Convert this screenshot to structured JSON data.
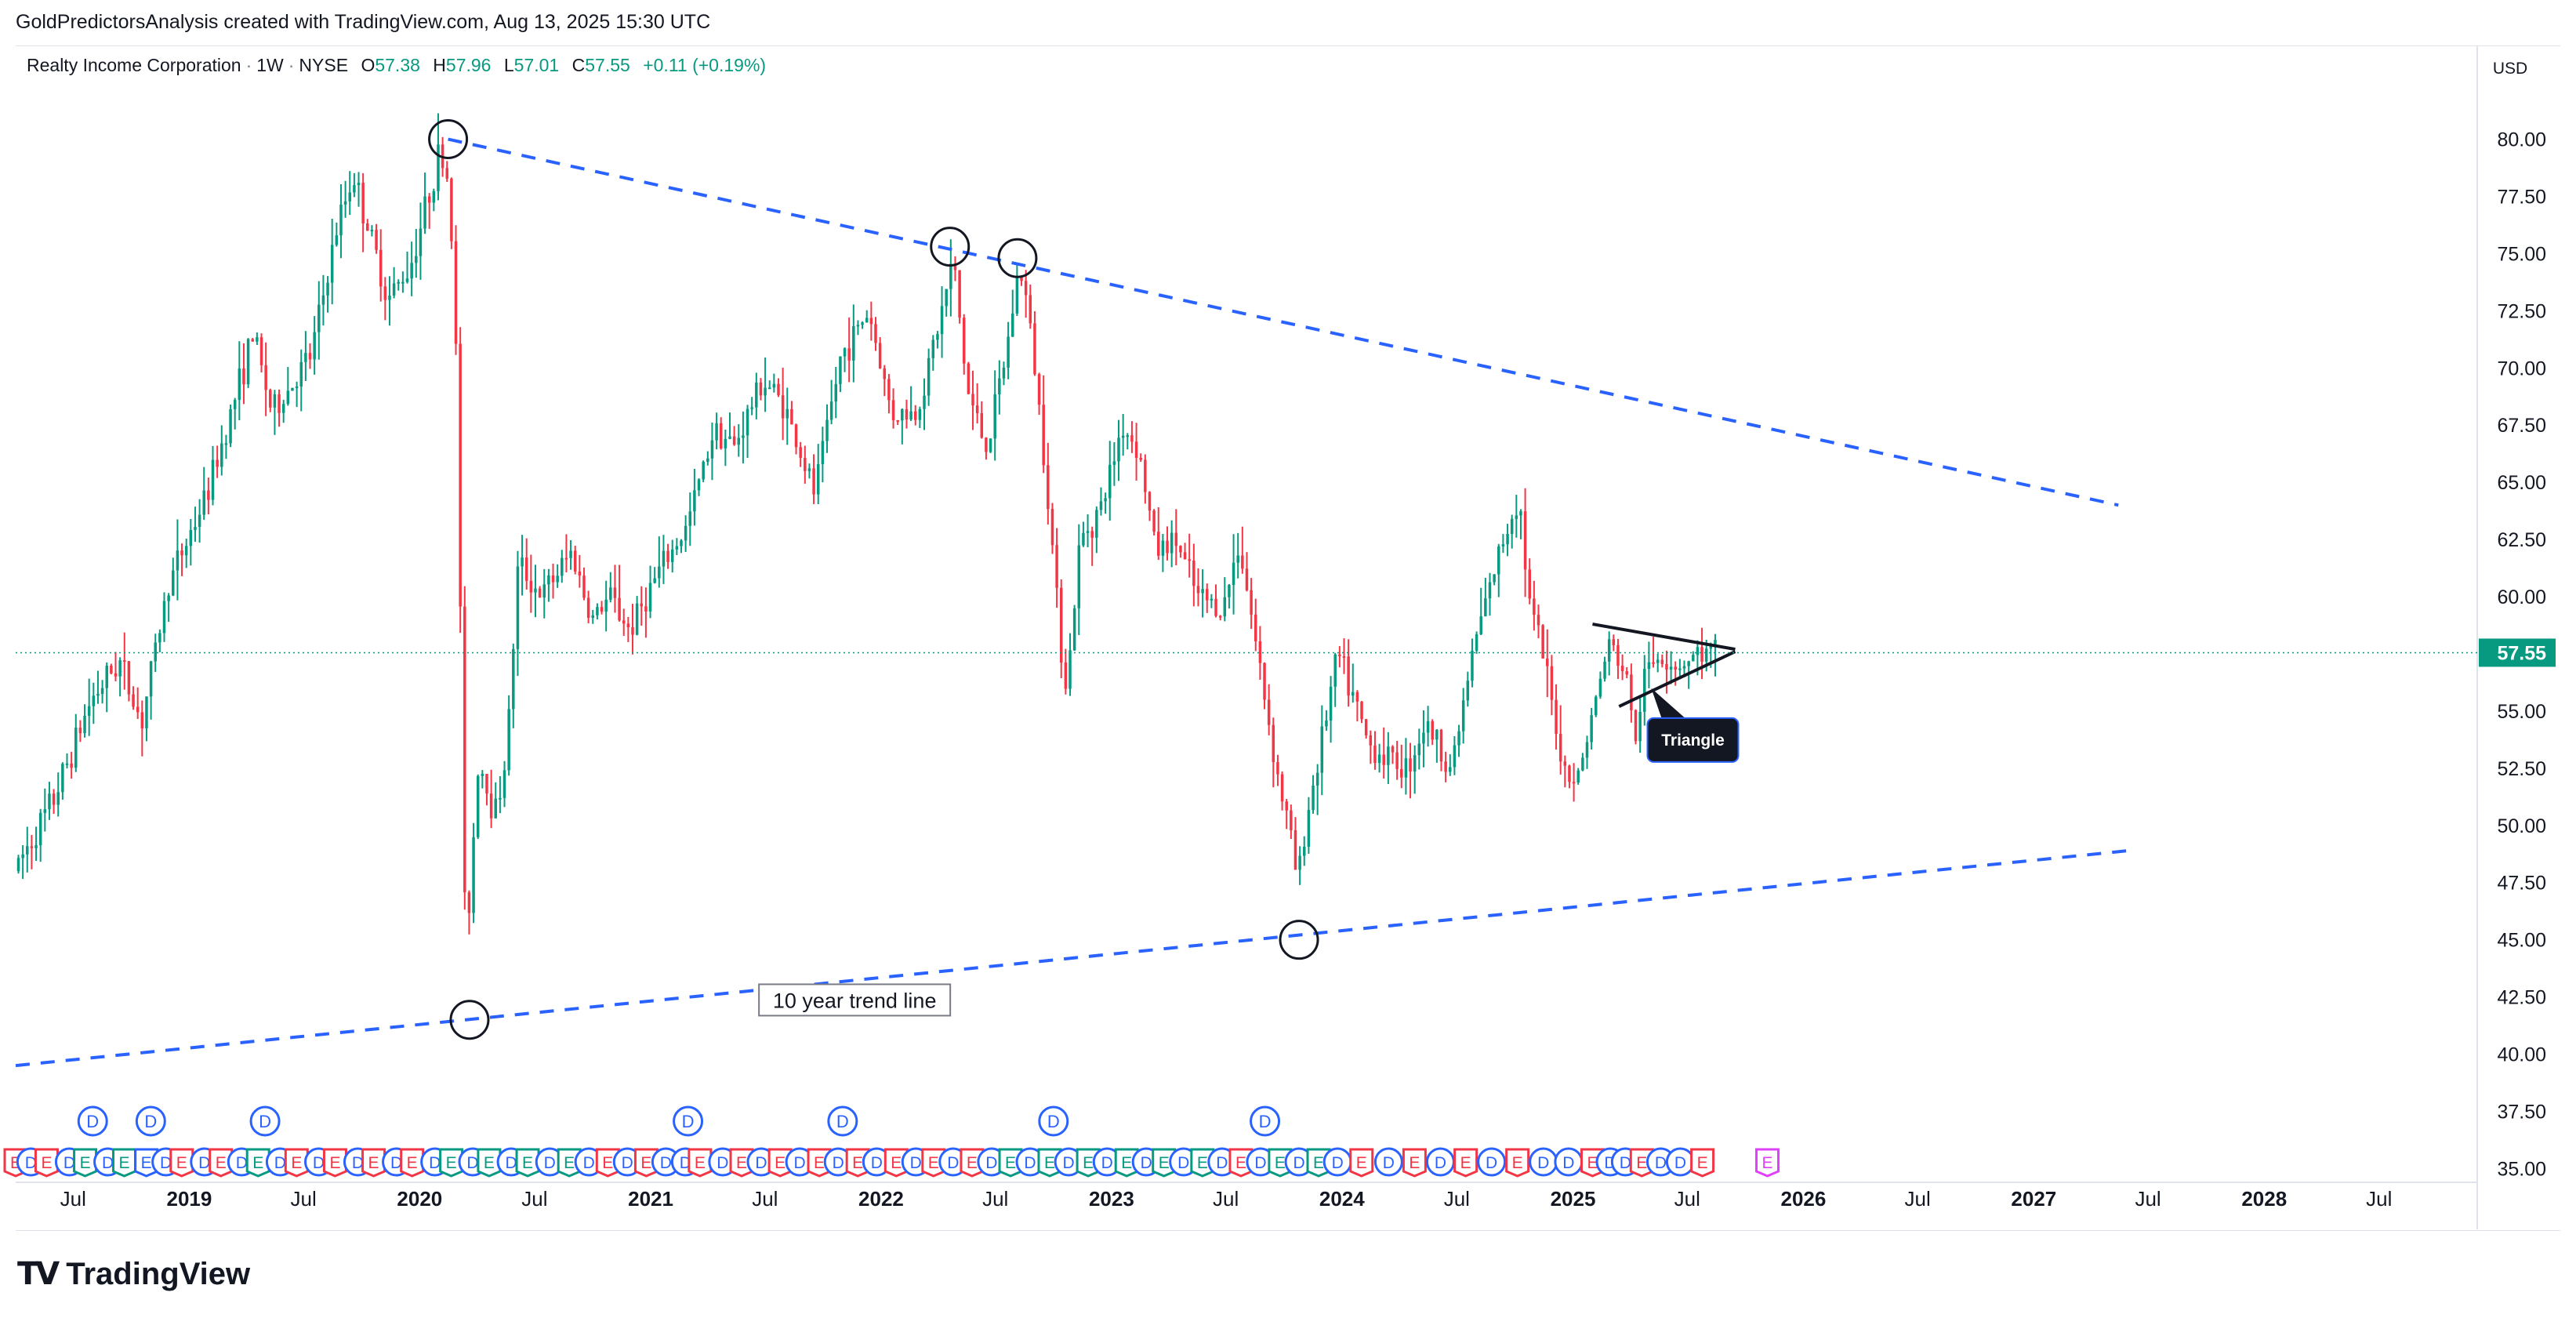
{
  "header": {
    "credit": "GoldPredictorsAnalysis created with TradingView.com, Aug 13, 2025 15:30 UTC"
  },
  "symbol": {
    "name": "Realty Income Corporation",
    "interval": "1W",
    "exchange": "NYSE",
    "open_label": "O",
    "open": "57.38",
    "high_label": "H",
    "high": "57.96",
    "low_label": "L",
    "low": "57.01",
    "close_label": "C",
    "close": "57.55",
    "change": "+0.11 (+0.19%)"
  },
  "currency": "USD",
  "last_price_label": "57.55",
  "footer": {
    "logo_text": "TradingView"
  },
  "colors": {
    "up": "#089981",
    "down": "#f23645",
    "trend": "#2962ff",
    "last_price": "#089981",
    "dividend": "#2962ff",
    "earnings_up": "#089981",
    "earnings_down": "#f23645",
    "earnings_future": "#e040fb"
  },
  "chart_data": {
    "type": "candlestick",
    "interval": "1W",
    "yaxis": {
      "range": [
        34.5,
        83
      ],
      "ticks": [
        35.0,
        37.5,
        40.0,
        42.5,
        45.0,
        47.5,
        50.0,
        52.5,
        55.0,
        57.5,
        60.0,
        62.5,
        65.0,
        67.5,
        70.0,
        72.5,
        75.0,
        77.5,
        80.0
      ],
      "tick_labels": [
        "35.00",
        "37.50",
        "40.00",
        "42.50",
        "45.00",
        "47.50",
        "50.00",
        "52.50",
        "55.00",
        "57.50",
        "60.00",
        "62.50",
        "65.00",
        "67.50",
        "70.00",
        "72.50",
        "75.00",
        "77.50",
        "80.00"
      ]
    },
    "xaxis": {
      "range": [
        "2018-04-01",
        "2028-12-01"
      ],
      "ticks": [
        "2018-07-01",
        "2019-01-01",
        "2019-07-01",
        "2020-01-01",
        "2020-07-01",
        "2021-01-01",
        "2021-07-01",
        "2022-01-01",
        "2022-07-01",
        "2023-01-01",
        "2023-07-01",
        "2024-01-01",
        "2024-07-01",
        "2025-01-01",
        "2025-07-01",
        "2026-01-01",
        "2026-07-01",
        "2027-01-01",
        "2027-07-01",
        "2028-01-01",
        "2028-07-01"
      ],
      "tick_labels": [
        "Jul",
        "2019",
        "Jul",
        "2020",
        "Jul",
        "2021",
        "Jul",
        "2022",
        "Jul",
        "2023",
        "Jul",
        "2024",
        "Jul",
        "2025",
        "Jul",
        "2026",
        "Jul",
        "2027",
        "Jul",
        "2028",
        "Jul"
      ]
    },
    "last_price": 57.55,
    "price_path": [
      [
        "2018-04-01",
        48.0
      ],
      [
        "2018-06-01",
        51.0
      ],
      [
        "2018-08-01",
        55.5
      ],
      [
        "2018-09-15",
        57.2
      ],
      [
        "2018-10-20",
        54.5
      ],
      [
        "2018-12-01",
        60.5
      ],
      [
        "2019-02-01",
        64.5
      ],
      [
        "2019-03-15",
        68.5
      ],
      [
        "2019-04-15",
        71.5
      ],
      [
        "2019-05-15",
        68.0
      ],
      [
        "2019-07-15",
        70.5
      ],
      [
        "2019-08-25",
        76.0
      ],
      [
        "2019-09-20",
        78.5
      ],
      [
        "2019-10-15",
        76.0
      ],
      [
        "2019-11-15",
        73.0
      ],
      [
        "2019-12-20",
        74.5
      ],
      [
        "2020-02-05",
        79.5
      ],
      [
        "2020-02-20",
        78.0
      ],
      [
        "2020-03-02",
        70.0
      ],
      [
        "2020-03-09",
        58.0
      ],
      [
        "2020-03-16",
        44.5
      ],
      [
        "2020-03-23",
        47.0
      ],
      [
        "2020-04-06",
        53.0
      ],
      [
        "2020-05-01",
        50.5
      ],
      [
        "2020-05-20",
        53.0
      ],
      [
        "2020-06-08",
        61.5
      ],
      [
        "2020-07-15",
        60.0
      ],
      [
        "2020-09-01",
        62.0
      ],
      [
        "2020-10-01",
        59.0
      ],
      [
        "2020-11-01",
        60.0
      ],
      [
        "2020-12-01",
        58.5
      ],
      [
        "2021-01-15",
        61.0
      ],
      [
        "2021-03-01",
        63.0
      ],
      [
        "2021-04-15",
        67.5
      ],
      [
        "2021-05-15",
        66.5
      ],
      [
        "2021-06-30",
        69.5
      ],
      [
        "2021-08-01",
        68.5
      ],
      [
        "2021-09-20",
        64.5
      ],
      [
        "2021-11-01",
        70.5
      ],
      [
        "2021-12-15",
        72.5
      ],
      [
        "2022-01-20",
        68.0
      ],
      [
        "2022-03-01",
        68.0
      ],
      [
        "2022-04-10",
        72.5
      ],
      [
        "2022-04-28",
        74.8
      ],
      [
        "2022-05-20",
        69.0
      ],
      [
        "2022-06-20",
        66.5
      ],
      [
        "2022-07-20",
        70.5
      ],
      [
        "2022-08-10",
        74.5
      ],
      [
        "2022-08-25",
        72.5
      ],
      [
        "2022-09-20",
        66.0
      ],
      [
        "2022-10-15",
        58.0
      ],
      [
        "2022-10-25",
        56.0
      ],
      [
        "2022-11-15",
        62.5
      ],
      [
        "2022-12-20",
        64.0
      ],
      [
        "2023-01-20",
        67.5
      ],
      [
        "2023-02-15",
        66.5
      ],
      [
        "2023-03-15",
        62.0
      ],
      [
        "2023-04-15",
        62.5
      ],
      [
        "2023-05-20",
        60.0
      ],
      [
        "2023-06-30",
        59.5
      ],
      [
        "2023-07-25",
        62.5
      ],
      [
        "2023-08-20",
        58.0
      ],
      [
        "2023-09-25",
        52.0
      ],
      [
        "2023-10-15",
        49.5
      ],
      [
        "2023-10-25",
        47.5
      ],
      [
        "2023-11-10",
        50.5
      ],
      [
        "2023-12-01",
        53.5
      ],
      [
        "2023-12-28",
        57.5
      ],
      [
        "2024-02-15",
        53.5
      ],
      [
        "2024-04-15",
        52.5
      ],
      [
        "2024-05-15",
        54.5
      ],
      [
        "2024-06-25",
        52.5
      ],
      [
        "2024-08-01",
        58.0
      ],
      [
        "2024-09-15",
        62.5
      ],
      [
        "2024-10-10",
        64.5
      ],
      [
        "2024-10-25",
        60.0
      ],
      [
        "2024-11-20",
        57.0
      ],
      [
        "2024-12-20",
        52.5
      ],
      [
        "2025-01-10",
        52.0
      ],
      [
        "2025-02-05",
        55.0
      ],
      [
        "2025-03-01",
        58.0
      ],
      [
        "2025-03-20",
        57.0
      ],
      [
        "2025-04-05",
        56.0
      ],
      [
        "2025-04-10",
        52.5
      ],
      [
        "2025-04-25",
        56.5
      ],
      [
        "2025-05-20",
        57.5
      ],
      [
        "2025-06-20",
        57.0
      ],
      [
        "2025-07-20",
        57.5
      ],
      [
        "2025-08-13",
        57.55
      ]
    ],
    "trend_lines": [
      {
        "name": "upper-resistance",
        "style": "dashed",
        "from": [
          "2020-02-15",
          80.0
        ],
        "to": [
          "2027-05-15",
          64.0
        ]
      },
      {
        "name": "lower-support",
        "style": "dashed",
        "from": [
          "2018-04-01",
          39.5
        ],
        "to": [
          "2027-06-01",
          48.9
        ]
      },
      {
        "name": "triangle-upper",
        "style": "solid",
        "from": [
          "2025-02-01",
          58.8
        ],
        "to": [
          "2025-09-15",
          57.7
        ]
      },
      {
        "name": "triangle-lower",
        "style": "solid",
        "from": [
          "2025-03-15",
          55.2
        ],
        "to": [
          "2025-09-15",
          57.6
        ]
      }
    ],
    "pivot_circles": [
      {
        "name": "2020-top",
        "x": "2020-02-15",
        "y": 80.0
      },
      {
        "name": "2022-april-high",
        "x": "2022-04-20",
        "y": 75.3
      },
      {
        "name": "2022-august-high",
        "x": "2022-08-05",
        "y": 74.8
      },
      {
        "name": "2020-covid-low",
        "x": "2020-03-20",
        "y": 41.5
      },
      {
        "name": "2023-october-low",
        "x": "2023-10-25",
        "y": 45.0
      }
    ],
    "annotations": [
      {
        "name": "trend-line-label",
        "text": "10 year trend line",
        "x": "2021-11-20",
        "y": 42.3,
        "boxed": true
      },
      {
        "name": "triangle-callout",
        "text": "Triangle",
        "x": "2025-07-10",
        "y": 53.8,
        "points_to": [
          "2025-05-05",
          56.0
        ]
      }
    ],
    "dividend_markers": [
      "2018-08-01",
      "2018-11-01",
      "2019-05-01",
      "2021-03-01",
      "2021-11-01",
      "2022-10-01",
      "2023-09-01"
    ],
    "event_markers": [
      {
        "d": "2018-04-01",
        "t": "E",
        "c": "down"
      },
      {
        "d": "2018-04-25",
        "t": "D",
        "c": "div"
      },
      {
        "d": "2018-05-20",
        "t": "E",
        "c": "down"
      },
      {
        "d": "2018-06-25",
        "t": "D",
        "c": "div"
      },
      {
        "d": "2018-07-20",
        "t": "E",
        "c": "up"
      },
      {
        "d": "2018-08-25",
        "t": "D",
        "c": "div"
      },
      {
        "d": "2018-09-20",
        "t": "E",
        "c": "up"
      },
      {
        "d": "2018-10-25",
        "t": "E",
        "c": "div"
      },
      {
        "d": "2018-11-25",
        "t": "D",
        "c": "div"
      },
      {
        "d": "2018-12-20",
        "t": "E",
        "c": "down"
      },
      {
        "d": "2019-01-25",
        "t": "D",
        "c": "div"
      },
      {
        "d": "2019-02-20",
        "t": "E",
        "c": "down"
      },
      {
        "d": "2019-03-25",
        "t": "D",
        "c": "div"
      },
      {
        "d": "2019-04-20",
        "t": "E",
        "c": "up"
      },
      {
        "d": "2019-05-25",
        "t": "D",
        "c": "div"
      },
      {
        "d": "2019-06-20",
        "t": "E",
        "c": "down"
      },
      {
        "d": "2019-07-25",
        "t": "D",
        "c": "div"
      },
      {
        "d": "2019-08-20",
        "t": "E",
        "c": "down"
      },
      {
        "d": "2019-09-25",
        "t": "D",
        "c": "div"
      },
      {
        "d": "2019-10-20",
        "t": "E",
        "c": "down"
      },
      {
        "d": "2019-11-25",
        "t": "D",
        "c": "div"
      },
      {
        "d": "2019-12-20",
        "t": "E",
        "c": "down"
      },
      {
        "d": "2020-01-25",
        "t": "D",
        "c": "div"
      },
      {
        "d": "2020-02-20",
        "t": "E",
        "c": "up"
      },
      {
        "d": "2020-03-25",
        "t": "D",
        "c": "div"
      },
      {
        "d": "2020-04-20",
        "t": "E",
        "c": "up"
      },
      {
        "d": "2020-05-25",
        "t": "D",
        "c": "div"
      },
      {
        "d": "2020-06-20",
        "t": "E",
        "c": "up"
      },
      {
        "d": "2020-07-25",
        "t": "D",
        "c": "div"
      },
      {
        "d": "2020-08-25",
        "t": "E",
        "c": "up"
      },
      {
        "d": "2020-09-25",
        "t": "D",
        "c": "div"
      },
      {
        "d": "2020-10-25",
        "t": "E",
        "c": "down"
      },
      {
        "d": "2020-11-25",
        "t": "D",
        "c": "div"
      },
      {
        "d": "2020-12-25",
        "t": "E",
        "c": "down"
      },
      {
        "d": "2021-01-25",
        "t": "D",
        "c": "div"
      },
      {
        "d": "2021-02-25",
        "t": "D",
        "c": "div"
      },
      {
        "d": "2021-03-20",
        "t": "E",
        "c": "down"
      },
      {
        "d": "2021-04-25",
        "t": "D",
        "c": "div"
      },
      {
        "d": "2021-05-25",
        "t": "E",
        "c": "down"
      },
      {
        "d": "2021-06-25",
        "t": "D",
        "c": "div"
      },
      {
        "d": "2021-07-25",
        "t": "E",
        "c": "down"
      },
      {
        "d": "2021-08-25",
        "t": "D",
        "c": "div"
      },
      {
        "d": "2021-09-25",
        "t": "E",
        "c": "down"
      },
      {
        "d": "2021-10-25",
        "t": "D",
        "c": "div"
      },
      {
        "d": "2021-11-25",
        "t": "E",
        "c": "down"
      },
      {
        "d": "2021-12-25",
        "t": "D",
        "c": "div"
      },
      {
        "d": "2022-01-25",
        "t": "E",
        "c": "down"
      },
      {
        "d": "2022-02-25",
        "t": "D",
        "c": "div"
      },
      {
        "d": "2022-03-25",
        "t": "E",
        "c": "down"
      },
      {
        "d": "2022-04-25",
        "t": "D",
        "c": "div"
      },
      {
        "d": "2022-05-25",
        "t": "E",
        "c": "down"
      },
      {
        "d": "2022-06-25",
        "t": "D",
        "c": "div"
      },
      {
        "d": "2022-07-25",
        "t": "E",
        "c": "up"
      },
      {
        "d": "2022-08-25",
        "t": "D",
        "c": "div"
      },
      {
        "d": "2022-09-25",
        "t": "E",
        "c": "up"
      },
      {
        "d": "2022-10-25",
        "t": "D",
        "c": "div"
      },
      {
        "d": "2022-11-25",
        "t": "E",
        "c": "up"
      },
      {
        "d": "2022-12-25",
        "t": "D",
        "c": "div"
      },
      {
        "d": "2023-01-25",
        "t": "E",
        "c": "up"
      },
      {
        "d": "2023-02-25",
        "t": "D",
        "c": "div"
      },
      {
        "d": "2023-03-25",
        "t": "E",
        "c": "up"
      },
      {
        "d": "2023-04-25",
        "t": "D",
        "c": "div"
      },
      {
        "d": "2023-05-25",
        "t": "E",
        "c": "up"
      },
      {
        "d": "2023-06-25",
        "t": "D",
        "c": "div"
      },
      {
        "d": "2023-07-25",
        "t": "E",
        "c": "down"
      },
      {
        "d": "2023-08-25",
        "t": "D",
        "c": "div"
      },
      {
        "d": "2023-09-25",
        "t": "E",
        "c": "up"
      },
      {
        "d": "2023-10-25",
        "t": "D",
        "c": "div"
      },
      {
        "d": "2023-11-25",
        "t": "E",
        "c": "up"
      },
      {
        "d": "2023-12-25",
        "t": "D",
        "c": "div"
      },
      {
        "d": "2024-02-01",
        "t": "E",
        "c": "down"
      },
      {
        "d": "2024-03-15",
        "t": "D",
        "c": "div"
      },
      {
        "d": "2024-04-25",
        "t": "E",
        "c": "down"
      },
      {
        "d": "2024-06-05",
        "t": "D",
        "c": "div"
      },
      {
        "d": "2024-07-15",
        "t": "E",
        "c": "down"
      },
      {
        "d": "2024-08-25",
        "t": "D",
        "c": "div"
      },
      {
        "d": "2024-10-05",
        "t": "E",
        "c": "down"
      },
      {
        "d": "2024-11-15",
        "t": "D",
        "c": "div"
      },
      {
        "d": "2024-12-25",
        "t": "D",
        "c": "div"
      },
      {
        "d": "2025-02-01",
        "t": "E",
        "c": "down"
      },
      {
        "d": "2025-03-01",
        "t": "D",
        "c": "div"
      },
      {
        "d": "2025-03-25",
        "t": "D",
        "c": "div"
      },
      {
        "d": "2025-04-20",
        "t": "E",
        "c": "down"
      },
      {
        "d": "2025-05-20",
        "t": "D",
        "c": "div"
      },
      {
        "d": "2025-06-20",
        "t": "D",
        "c": "div"
      },
      {
        "d": "2025-07-25",
        "t": "E",
        "c": "down"
      },
      {
        "d": "2025-11-05",
        "t": "E",
        "c": "future"
      }
    ]
  }
}
